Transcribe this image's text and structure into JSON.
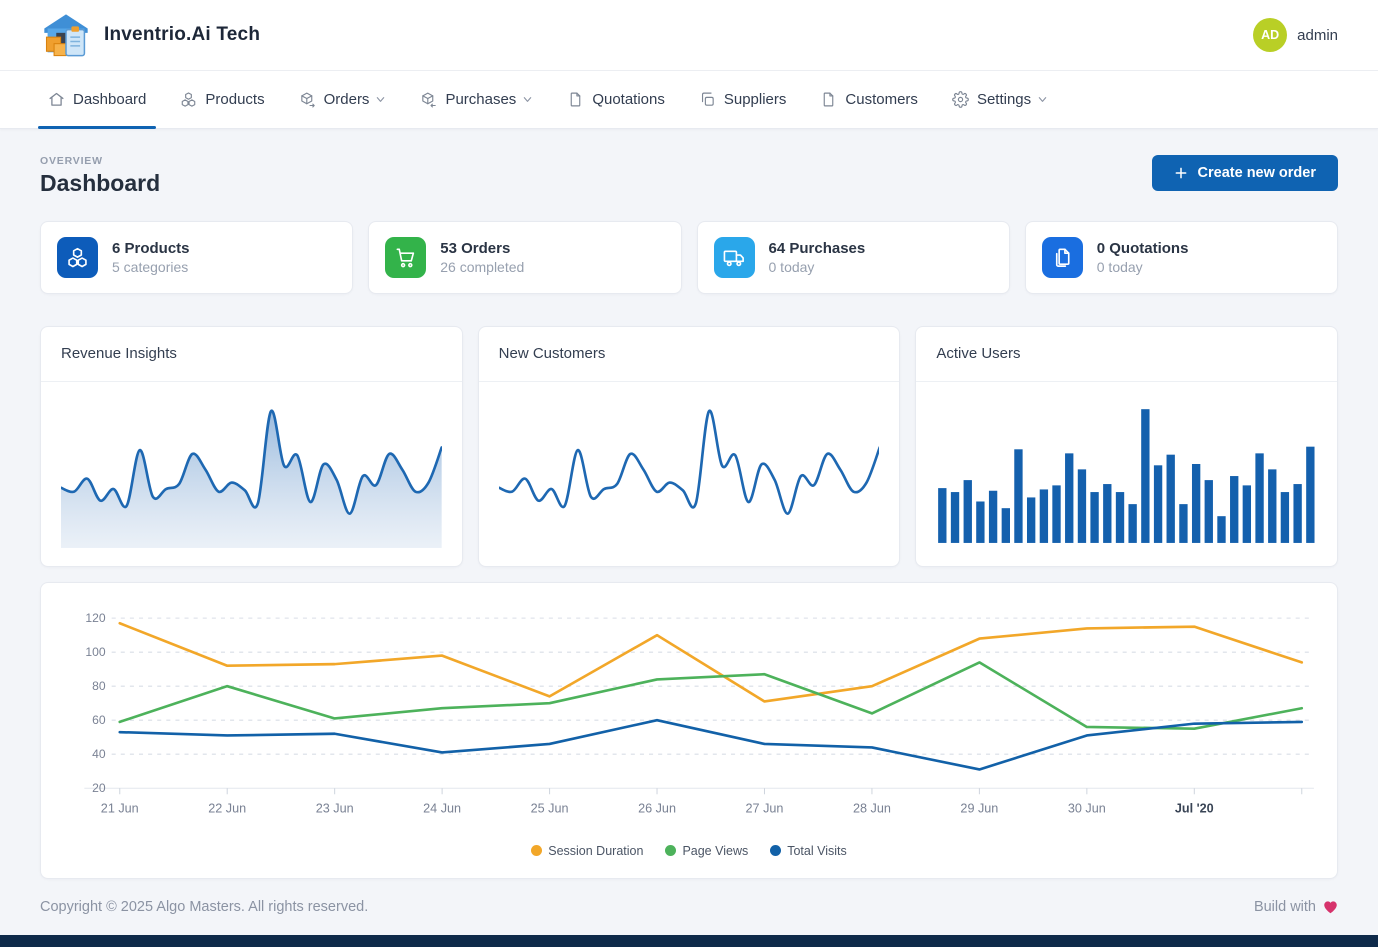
{
  "theme": {
    "accent": "#0f63b2",
    "spark-blue": "#1e68b2",
    "bar-blue": "#1460ad",
    "avatar-green": "#b9cf26",
    "heart-pink": "#d6336c"
  },
  "header": {
    "brand": "Inventrio.Ai Tech",
    "user": {
      "initials": "AD",
      "name": "admin"
    }
  },
  "nav": {
    "items": [
      {
        "label": "Dashboard",
        "icon": "home-icon",
        "active": true
      },
      {
        "label": "Products",
        "icon": "cubes-icon"
      },
      {
        "label": "Orders",
        "icon": "box-out-icon",
        "dropdown": true
      },
      {
        "label": "Purchases",
        "icon": "box-in-icon",
        "dropdown": true
      },
      {
        "label": "Quotations",
        "icon": "file-icon"
      },
      {
        "label": "Suppliers",
        "icon": "copy-icon"
      },
      {
        "label": "Customers",
        "icon": "file-icon"
      },
      {
        "label": "Settings",
        "icon": "gear-icon",
        "dropdown": true
      }
    ]
  },
  "page": {
    "eyebrow": "OVERVIEW",
    "title": "Dashboard",
    "create_order_label": "Create new order"
  },
  "stats": [
    {
      "title": "6 Products",
      "subtitle": "5 categories",
      "icon": "cubes-icon",
      "icon_bg": "#0d5cba"
    },
    {
      "title": "53 Orders",
      "subtitle": "26 completed",
      "icon": "cart-icon",
      "icon_bg": "#33b34a"
    },
    {
      "title": "64 Purchases",
      "subtitle": "0 today",
      "icon": "truck-icon",
      "icon_bg": "#2aa7ea"
    },
    {
      "title": "0 Quotations",
      "subtitle": "0 today",
      "icon": "pages-icon",
      "icon_bg": "#1a6ee0"
    }
  ],
  "footer": {
    "copyright": "Copyright © 2025 Algo Masters. All rights reserved.",
    "build_with": "Build with"
  },
  "chart_data": [
    {
      "id": "revenue-insights",
      "type": "area",
      "title": "Revenue Insights",
      "color": "#1e68b2",
      "values": [
        41,
        38,
        48,
        31,
        40,
        27,
        70,
        34,
        40,
        44,
        67,
        55,
        38,
        45,
        39,
        29,
        100,
        58,
        66,
        30,
        59,
        47,
        21,
        50,
        43,
        67,
        55,
        38,
        45,
        72
      ],
      "xlabel": "",
      "ylabel": "",
      "grid": false,
      "axes_hidden": true
    },
    {
      "id": "new-customers",
      "type": "line",
      "title": "New Customers",
      "color": "#1e68b2",
      "values": [
        41,
        38,
        48,
        31,
        40,
        27,
        70,
        34,
        40,
        44,
        67,
        55,
        38,
        45,
        39,
        29,
        100,
        58,
        66,
        30,
        59,
        47,
        21,
        50,
        43,
        67,
        55,
        38,
        45,
        72
      ],
      "xlabel": "",
      "ylabel": "",
      "grid": false,
      "axes_hidden": true
    },
    {
      "id": "active-users",
      "type": "bar",
      "title": "Active Users",
      "color": "#1460ad",
      "values": [
        41,
        38,
        47,
        31,
        39,
        26,
        70,
        34,
        40,
        43,
        67,
        55,
        38,
        44,
        38,
        29,
        100,
        58,
        66,
        29,
        59,
        47,
        20,
        50,
        43,
        67,
        55,
        38,
        44,
        72
      ],
      "xlabel": "",
      "ylabel": "",
      "grid": false,
      "axes_hidden": true
    },
    {
      "id": "traffic-overview",
      "type": "line",
      "title": "",
      "categories": [
        "21 Jun",
        "22 Jun",
        "23 Jun",
        "24 Jun",
        "25 Jun",
        "26 Jun",
        "27 Jun",
        "28 Jun",
        "29 Jun",
        "30 Jun",
        "Jul '20",
        ""
      ],
      "series": [
        {
          "name": "Session Duration",
          "color": "#f2a729",
          "values": [
            117,
            92,
            93,
            98,
            74,
            110,
            71,
            80,
            108,
            114,
            115,
            94
          ]
        },
        {
          "name": "Page Views",
          "color": "#4db25b",
          "values": [
            59,
            80,
            61,
            67,
            70,
            84,
            87,
            64,
            94,
            56,
            55,
            67
          ]
        },
        {
          "name": "Total Visits",
          "color": "#1261a8",
          "values": [
            53,
            51,
            52,
            41,
            46,
            60,
            46,
            44,
            31,
            51,
            58,
            59
          ]
        }
      ],
      "ylim": [
        20,
        120
      ],
      "yticks": [
        20,
        40,
        60,
        80,
        100,
        120
      ],
      "grid": "horizontal-dashed",
      "legend_position": "bottom"
    }
  ]
}
